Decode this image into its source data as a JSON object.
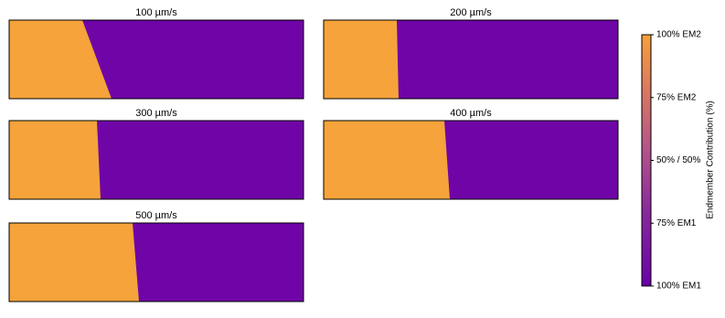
{
  "chart_data": {
    "type": "image-panels",
    "panels": [
      {
        "title": "100 µm/s"
      },
      {
        "title": "200 µm/s"
      },
      {
        "title": "300 µm/s"
      },
      {
        "title": "400 µm/s"
      },
      {
        "title": "500 µm/s"
      }
    ],
    "colorbar": {
      "label": "Endmember Contribution (%)",
      "lim": [
        0,
        100
      ],
      "ticks": [
        {
          "value": 0,
          "label": "100% EM1"
        },
        {
          "value": 25,
          "label": "75% EM1"
        },
        {
          "value": 50,
          "label": "50% / 50%"
        },
        {
          "value": 75,
          "label": "75% EM2"
        },
        {
          "value": 100,
          "label": "100% EM2"
        }
      ]
    }
  }
}
